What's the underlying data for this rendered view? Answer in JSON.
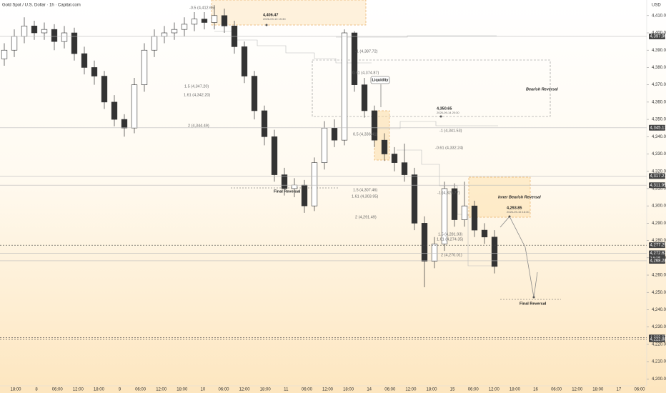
{
  "chart_data": {
    "type": "candlestick",
    "title": "Gold Spot / U.S. Dollar · 1h · Capital.com",
    "currency": "USD",
    "up_color": "#ffffff",
    "down_color": "#333333",
    "edge_color": "#333333",
    "open": [
      4385,
      4390,
      4398,
      4404,
      4400,
      4402,
      4395,
      4400,
      4388,
      4380,
      4375,
      4360,
      4350,
      4345,
      4370,
      4390,
      4398,
      4400,
      4402,
      4405,
      4408,
      4406,
      4410,
      4404,
      4392,
      4375,
      4355,
      4340,
      4318,
      4310,
      4312,
      4300,
      4325,
      4345,
      4338,
      4400,
      4370,
      4355,
      4338,
      4330,
      4325,
      4318,
      4290,
      4268,
      4278,
      4310,
      4292,
      4300,
      4286,
      4282
    ],
    "high": [
      4394,
      4402,
      4409,
      4407,
      4406,
      4405,
      4404,
      4403,
      4392,
      4384,
      4378,
      4364,
      4353,
      4374,
      4394,
      4402,
      4404,
      4406,
      4409,
      4412,
      4412,
      4416,
      4414,
      4407,
      4395,
      4378,
      4358,
      4344,
      4322,
      4316,
      4315,
      4328,
      4349,
      4350,
      4402,
      4401,
      4374,
      4358,
      4342,
      4334,
      4336,
      4322,
      4294,
      4282,
      4314,
      4313,
      4314,
      4303,
      4290,
      4286
    ],
    "low": [
      4381,
      4386,
      4394,
      4396,
      4396,
      4390,
      4391,
      4384,
      4376,
      4370,
      4356,
      4346,
      4340,
      4342,
      4366,
      4386,
      4394,
      4396,
      4398,
      4401,
      4402,
      4402,
      4400,
      4388,
      4371,
      4350,
      4335,
      4314,
      4306,
      4305,
      4296,
      4297,
      4321,
      4334,
      4335,
      4366,
      4351,
      4334,
      4326,
      4320,
      4314,
      4286,
      4253,
      4264,
      4274,
      4288,
      4288,
      4282,
      4278,
      4261
    ],
    "close": [
      4390,
      4398,
      4404,
      4400,
      4402,
      4395,
      4400,
      4388,
      4380,
      4375,
      4360,
      4350,
      4345,
      4370,
      4390,
      4398,
      4400,
      4402,
      4405,
      4408,
      4406,
      4410,
      4404,
      4392,
      4375,
      4355,
      4340,
      4318,
      4310,
      4312,
      4300,
      4325,
      4345,
      4338,
      4400,
      4370,
      4355,
      4338,
      4330,
      4325,
      4318,
      4290,
      4268,
      4278,
      4310,
      4292,
      4300,
      4286,
      4282,
      4265
    ],
    "ylim": [
      4196,
      4419
    ],
    "yticks": [
      {
        "value": 4410,
        "label": "4,410.00"
      },
      {
        "value": 4400,
        "label": "4,400.00"
      },
      {
        "value": 4390,
        "label": "4,390.00"
      },
      {
        "value": 4380,
        "label": "4,380.00"
      },
      {
        "value": 4370,
        "label": "4,370.00"
      },
      {
        "value": 4360,
        "label": "4,360.00"
      },
      {
        "value": 4350,
        "label": "4,350.00"
      },
      {
        "value": 4340,
        "label": "4,340.00"
      },
      {
        "value": 4330,
        "label": "4,330.00"
      },
      {
        "value": 4320,
        "label": "4,320.00"
      },
      {
        "value": 4310,
        "label": "4,310.00"
      },
      {
        "value": 4300,
        "label": "4,300.00"
      },
      {
        "value": 4290,
        "label": "4,290.00"
      },
      {
        "value": 4280,
        "label": "4,280.00"
      },
      {
        "value": 4270,
        "label": "4,270.00"
      },
      {
        "value": 4260,
        "label": "4,260.00"
      },
      {
        "value": 4250,
        "label": "4,250.00"
      },
      {
        "value": 4240,
        "label": "4,240.00"
      },
      {
        "value": 4230,
        "label": "4,230.00"
      },
      {
        "value": 4220,
        "label": "4,220.00"
      },
      {
        "value": 4210,
        "label": "4,210.00"
      },
      {
        "value": 4200,
        "label": "4,200.00"
      }
    ],
    "xtick_labels": [
      "18:00",
      "8",
      "06:00",
      "12:00",
      "18:00",
      "9",
      "06:00",
      "12:00",
      "18:00",
      "10",
      "06:00",
      "12:00",
      "18:00",
      "11",
      "06:00",
      "12:00",
      "18:00",
      "14",
      "06:00",
      "12:00",
      "18:00",
      "15",
      "06:00",
      "12:00",
      "18:00",
      "16",
      "06:00",
      "12:00",
      "18:00",
      "17",
      "06:00"
    ],
    "price_labels": [
      {
        "value": 4397.96,
        "label": "4,397.96"
      },
      {
        "value": 4345.17,
        "label": "4,345.17"
      },
      {
        "value": 4317.27,
        "label": "4,317.27"
      },
      {
        "value": 4311.95,
        "label": "4,311.95"
      },
      {
        "value": 4277.29,
        "label": "4,277.29"
      },
      {
        "value": 4272.62,
        "label": "4,272.62"
      },
      {
        "value": 4268.28,
        "label": "4,268.28"
      },
      {
        "value": 4223.97,
        "label": "4,223.97"
      },
      {
        "value": 4222.88,
        "label": "4,222.88"
      }
    ],
    "countdown": "14:15",
    "annotations": [
      "-0.5 (4,412.65)",
      "4,406.47",
      "2026-09-10 19:30",
      "-1 (4,387.72)",
      "0.61 (4,374.87)",
      "Liquidity",
      "1.5 (4,347.20)",
      "1.61 (4,342.20)",
      "Bearish Reversal",
      "2 (4,344.49)",
      "4,350.65",
      "2026-09-14 20:30",
      "-1 (4,341.53)",
      "0.5 (4,336.41)",
      "-0.61 (4,332.24)",
      "Final Reversal",
      "1.5 (4,307.46)",
      "-1 (4,325.77)",
      "Inner Bearish Reversal",
      "1.61 (4,303.95)",
      "4,293.85",
      "2026-09-15 16:30",
      "2 (4,291.49)",
      "1.5 (4,281.93)",
      "1.61 (4,274.35)",
      "2 (4,270.01)",
      "Final Reversal"
    ]
  }
}
